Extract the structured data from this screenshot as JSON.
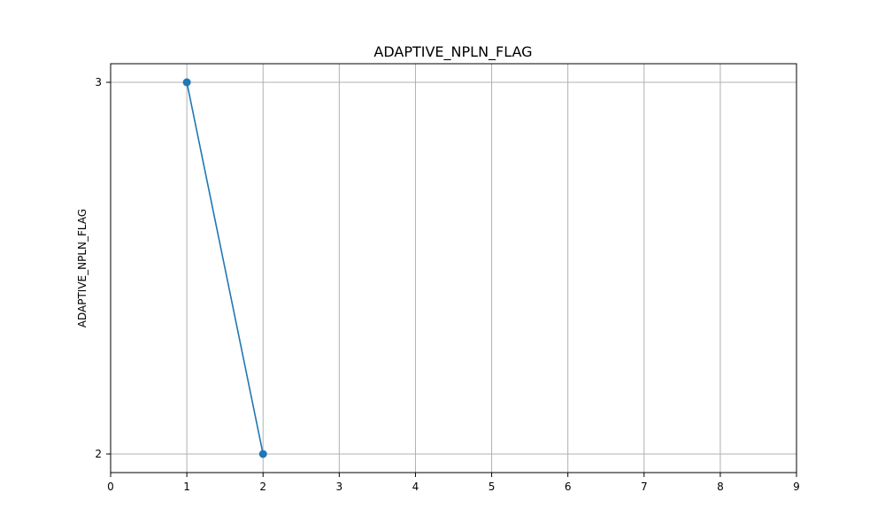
{
  "chart_data": {
    "type": "line",
    "title": "ADAPTIVE_NPLN_FLAG",
    "xlabel": "",
    "ylabel": "ADAPTIVE_NPLN_FLAG",
    "x": [
      1,
      2
    ],
    "y": [
      3,
      2
    ],
    "xlim": [
      0,
      9
    ],
    "ylim": [
      1.95,
      3.05
    ],
    "xticks": [
      0,
      1,
      2,
      3,
      4,
      5,
      6,
      7,
      8,
      9
    ],
    "yticks": [
      2,
      3
    ],
    "grid": true,
    "line_color": "#1f77b4",
    "marker": "circle"
  }
}
